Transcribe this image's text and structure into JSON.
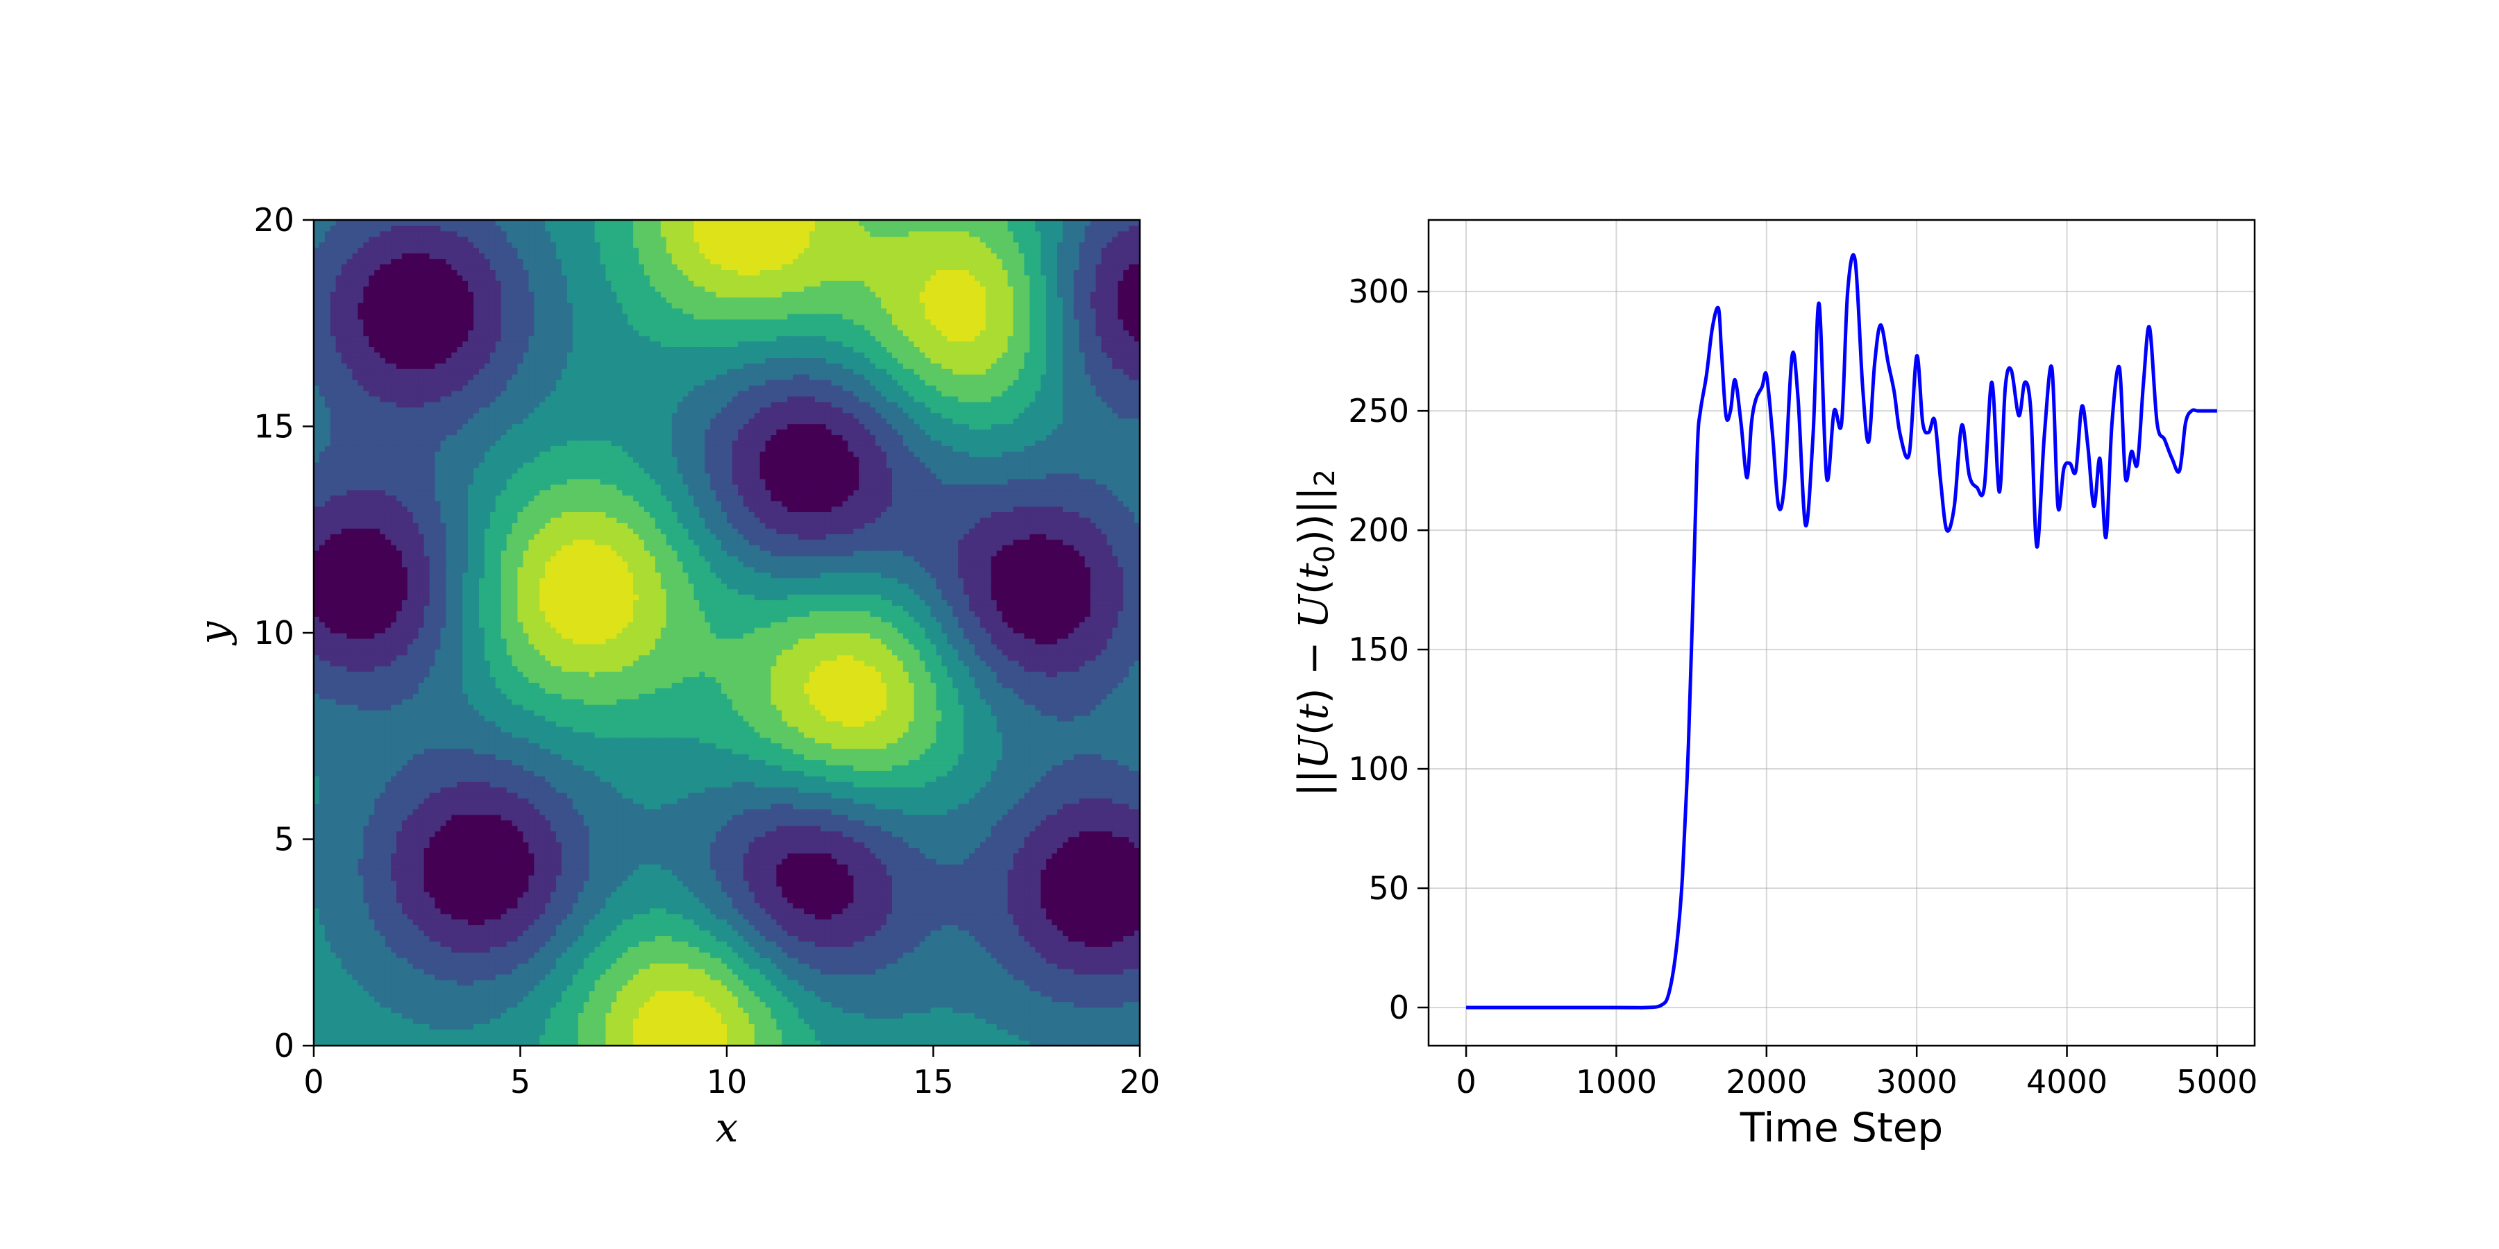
{
  "chart_data": [
    {
      "type": "contour",
      "xlabel": "x",
      "ylabel": "y",
      "xlim": [
        0,
        20
      ],
      "ylim": [
        0,
        20
      ],
      "xticks": [
        "0",
        "5",
        "10",
        "15",
        "20"
      ],
      "yticks": [
        "0",
        "5",
        "10",
        "15",
        "20"
      ],
      "colormap": "viridis",
      "levels": 9,
      "colorbar": false,
      "features": [
        {
          "kind": "minimum",
          "x": 2.5,
          "y": 17.8
        },
        {
          "kind": "minimum",
          "x": 12.0,
          "y": 14.0
        },
        {
          "kind": "minimum",
          "x": 1.2,
          "y": 11.2
        },
        {
          "kind": "minimum",
          "x": 17.5,
          "y": 11.0
        },
        {
          "kind": "minimum",
          "x": 4.0,
          "y": 4.3
        },
        {
          "kind": "minimum",
          "x": 12.0,
          "y": 4.0
        },
        {
          "kind": "minimum",
          "x": 19.0,
          "y": 3.8
        },
        {
          "kind": "minimum",
          "x": 19.8,
          "y": 18.0
        },
        {
          "kind": "maximum",
          "x": 16.0,
          "y": 17.8
        },
        {
          "kind": "maximum",
          "x": 6.5,
          "y": 11.0
        },
        {
          "kind": "maximum",
          "x": 13.0,
          "y": 8.5
        },
        {
          "kind": "maximum",
          "x": 10.5,
          "y": 20.0
        },
        {
          "kind": "maximum",
          "x": 9.0,
          "y": 0.5
        }
      ]
    },
    {
      "type": "line",
      "xlabel": "Time Step",
      "ylabel": "||U(t) - U(t0)||2",
      "xlim": [
        -250,
        5250
      ],
      "ylim": [
        -16,
        330
      ],
      "xticks": [
        "0",
        "1000",
        "2000",
        "3000",
        "4000",
        "5000"
      ],
      "yticks": [
        "0",
        "50",
        "100",
        "150",
        "200",
        "250",
        "300"
      ],
      "grid": true,
      "legend": false,
      "color": "#0000ff",
      "series": [
        {
          "x": [
            0,
            1000,
            1200,
            1300,
            1350,
            1400,
            1440,
            1480,
            1510,
            1540,
            1560,
            1600,
            1640,
            1680,
            1700,
            1730,
            1760,
            1790,
            1830,
            1870,
            1900,
            1930,
            1970,
            2000,
            2040,
            2080,
            2120,
            2170,
            2210,
            2260,
            2310,
            2350,
            2400,
            2450,
            2500,
            2540,
            2590,
            2640,
            2680,
            2720,
            2760,
            2810,
            2850,
            2890,
            2950,
            3000,
            3040,
            3080,
            3120,
            3160,
            3200,
            3250,
            3300,
            3350,
            3400,
            3450,
            3500,
            3550,
            3590,
            3630,
            3680,
            3720,
            3760,
            3800,
            3850,
            3900,
            3940,
            3980,
            4020,
            4060,
            4100,
            4140,
            4180,
            4220,
            4260,
            4300,
            4350,
            4390,
            4430,
            4470,
            4510,
            4550,
            4600,
            4650,
            4700,
            4750,
            4790,
            4830,
            4870,
            4910,
            4950,
            5000
          ],
          "y": [
            0,
            0,
            0,
            1,
            6,
            25,
            55,
            110,
            170,
            235,
            250,
            265,
            285,
            293,
            275,
            248,
            250,
            263,
            245,
            222,
            245,
            255,
            260,
            265,
            240,
            210,
            220,
            273,
            255,
            202,
            240,
            295,
            222,
            250,
            245,
            300,
            313,
            260,
            237,
            270,
            286,
            270,
            258,
            240,
            232,
            273,
            245,
            241,
            246,
            220,
            200,
            210,
            244,
            223,
            218,
            218,
            262,
            216,
            260,
            267,
            248,
            262,
            250,
            193,
            240,
            268,
            210,
            226,
            228,
            225,
            252,
            235,
            210,
            230,
            197,
            245,
            268,
            222,
            233,
            228,
            262,
            285,
            245,
            238,
            230,
            225,
            245,
            250,
            250,
            250,
            250,
            250
          ]
        }
      ]
    }
  ]
}
